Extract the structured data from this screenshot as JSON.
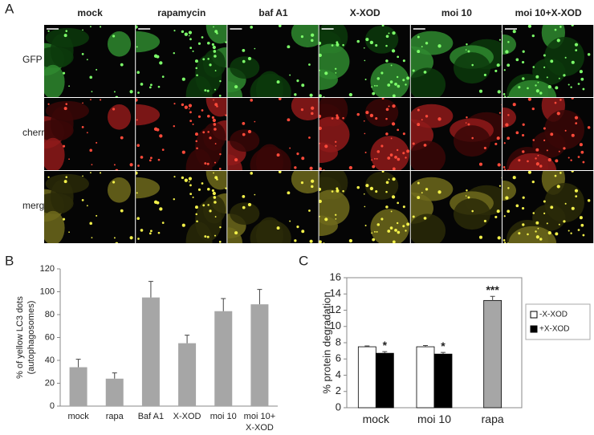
{
  "panel_a": {
    "label": "A",
    "columns": [
      "mock",
      "rapamycin",
      "baf A1",
      "X-XOD",
      "moi 10",
      "moi 10+X-XOD"
    ],
    "rows": [
      "GFP",
      "cherry",
      "merge"
    ]
  },
  "chart_data": [
    {
      "type": "bar",
      "panel_label": "B",
      "y_label": [
        "% of yellow LC3 dots",
        "(autophagosomes)"
      ],
      "categories": [
        "mock",
        "rapa",
        "Baf A1",
        "X-XOD",
        "moi 10",
        "moi 10+ X-XOD"
      ],
      "values": [
        34,
        24,
        95,
        55,
        83,
        89
      ],
      "errors": [
        7,
        5,
        14,
        7,
        11,
        13
      ],
      "color": "#a6a6a6",
      "ylim": [
        0,
        120
      ],
      "yticks": [
        0,
        20,
        40,
        60,
        80,
        100,
        120
      ]
    },
    {
      "type": "bar",
      "panel_label": "C",
      "y_label": [
        "% protein degradation"
      ],
      "categories": [
        "mock",
        "moi 10",
        "rapa"
      ],
      "series": [
        {
          "name": "-X-XOD",
          "color": "#ffffff",
          "values": [
            7.5,
            7.5,
            null
          ],
          "errors": [
            0.1,
            0.15,
            null
          ],
          "significance": [
            null,
            null,
            null
          ]
        },
        {
          "name": "+X-XOD",
          "color": "#000000",
          "values": [
            6.7,
            6.6,
            null
          ],
          "errors": [
            0.2,
            0.2,
            null
          ],
          "significance": [
            "*",
            "*",
            null
          ]
        },
        {
          "color": "#a6a6a6",
          "values": [
            null,
            null,
            13.2
          ],
          "errors": [
            null,
            null,
            0.5
          ],
          "significance": [
            null,
            null,
            "***"
          ]
        }
      ],
      "ylim": [
        0,
        16
      ],
      "yticks": [
        0,
        2,
        4,
        6,
        8,
        10,
        12,
        14,
        16
      ]
    }
  ]
}
